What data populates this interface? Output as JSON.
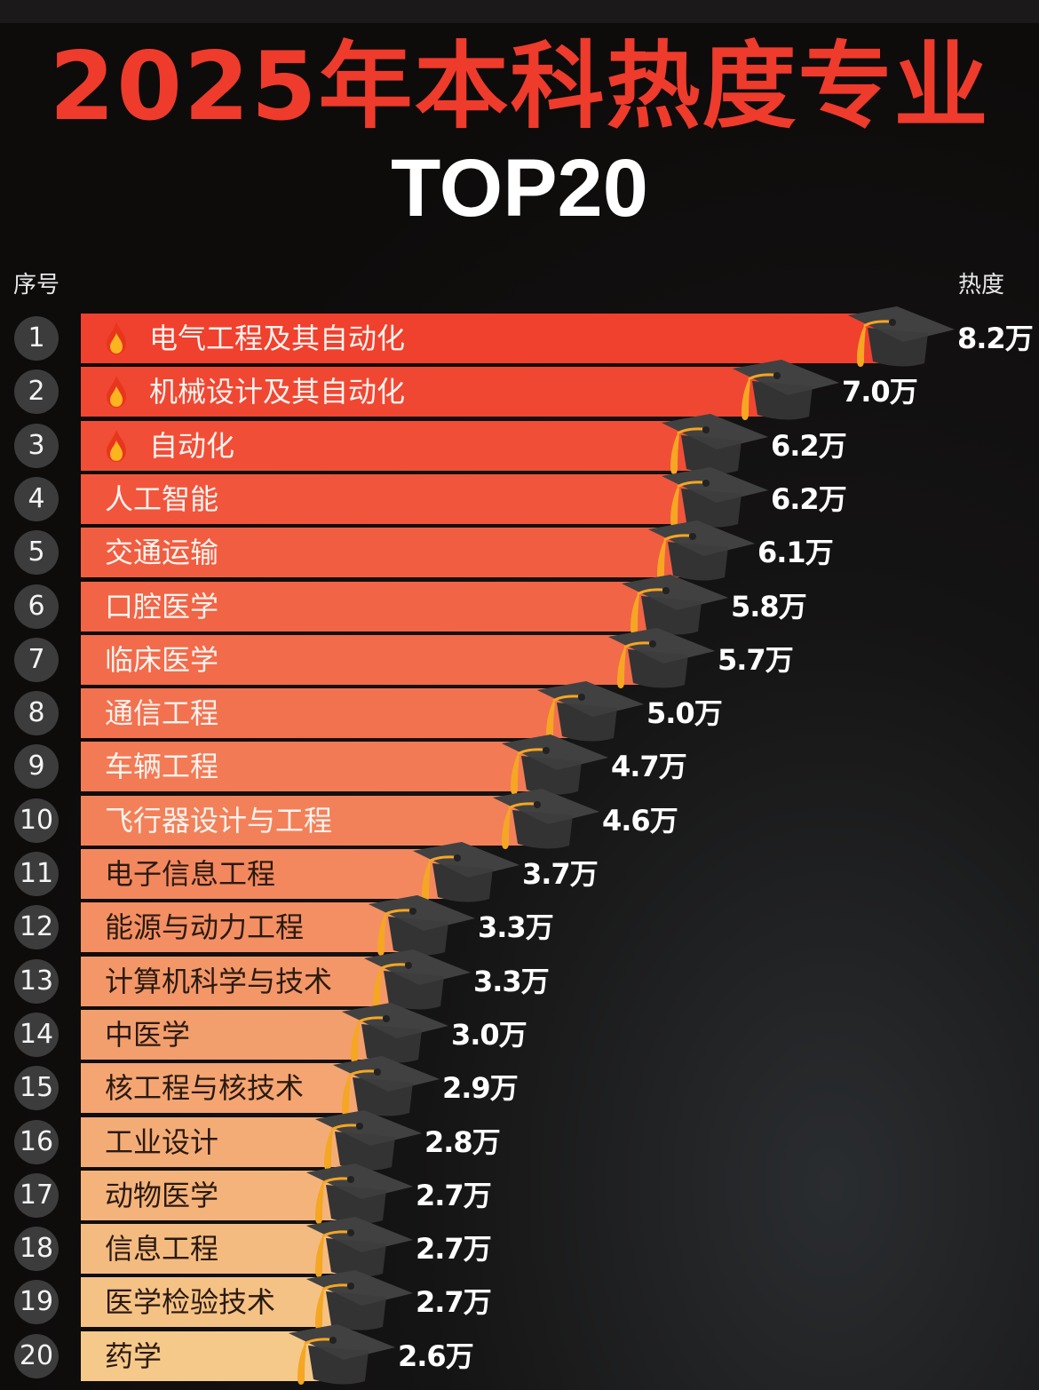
{
  "header": {
    "title": "2025年本科热度专业",
    "subtitle": "TOP20",
    "col_rank": "序号",
    "col_heat": "热度"
  },
  "colors": {
    "title": "#ee3b2c",
    "bar_top": "#f0402e",
    "bar_bottom": "#f5c98a",
    "background": "#0d0a0a",
    "badge": "#3c3c3c",
    "cap": "#3a3a3a",
    "tassel": "#f5a623"
  },
  "rows": [
    {
      "rank": "1",
      "name": "电气工程及其自动化",
      "value": "8.2万",
      "hot": true
    },
    {
      "rank": "2",
      "name": "机械设计及其自动化",
      "value": "7.0万",
      "hot": true
    },
    {
      "rank": "3",
      "name": "自动化",
      "value": "6.2万",
      "hot": true
    },
    {
      "rank": "4",
      "name": "人工智能",
      "value": "6.2万",
      "hot": false
    },
    {
      "rank": "5",
      "name": "交通运输",
      "value": "6.1万",
      "hot": false
    },
    {
      "rank": "6",
      "name": "口腔医学",
      "value": "5.8万",
      "hot": false
    },
    {
      "rank": "7",
      "name": "临床医学",
      "value": "5.7万",
      "hot": false
    },
    {
      "rank": "8",
      "name": "通信工程",
      "value": "5.0万",
      "hot": false
    },
    {
      "rank": "9",
      "name": "车辆工程",
      "value": "4.7万",
      "hot": false
    },
    {
      "rank": "10",
      "name": "飞行器设计与工程",
      "value": "4.6万",
      "hot": false
    },
    {
      "rank": "11",
      "name": "电子信息工程",
      "value": "3.7万",
      "hot": false
    },
    {
      "rank": "12",
      "name": "能源与动力工程",
      "value": "3.3万",
      "hot": false
    },
    {
      "rank": "13",
      "name": "计算机科学与技术",
      "value": "3.3万",
      "hot": false
    },
    {
      "rank": "14",
      "name": "中医学",
      "value": "3.0万",
      "hot": false
    },
    {
      "rank": "15",
      "name": "核工程与核技术",
      "value": "2.9万",
      "hot": false
    },
    {
      "rank": "16",
      "name": "工业设计",
      "value": "2.8万",
      "hot": false
    },
    {
      "rank": "17",
      "name": "动物医学",
      "value": "2.7万",
      "hot": false
    },
    {
      "rank": "18",
      "name": "信息工程",
      "value": "2.7万",
      "hot": false
    },
    {
      "rank": "19",
      "name": "医学检验技术",
      "value": "2.7万",
      "hot": false
    },
    {
      "rank": "20",
      "name": "药学",
      "value": "2.6万",
      "hot": false
    }
  ],
  "chart_data": {
    "type": "bar",
    "orientation": "horizontal",
    "title": "2025年本科热度专业",
    "subtitle": "TOP20",
    "xlabel": "热度",
    "ylabel": "序号",
    "unit": "万",
    "categories": [
      "电气工程及其自动化",
      "机械设计及其自动化",
      "自动化",
      "人工智能",
      "交通运输",
      "口腔医学",
      "临床医学",
      "通信工程",
      "车辆工程",
      "飞行器设计与工程",
      "电子信息工程",
      "能源与动力工程",
      "计算机科学与技术",
      "中医学",
      "核工程与核技术",
      "工业设计",
      "动物医学",
      "信息工程",
      "医学检验技术",
      "药学"
    ],
    "values": [
      8.2,
      7.0,
      6.2,
      6.2,
      6.1,
      5.8,
      5.7,
      5.0,
      4.7,
      4.6,
      3.7,
      3.3,
      3.3,
      3.0,
      2.9,
      2.8,
      2.7,
      2.7,
      2.7,
      2.6
    ],
    "value_labels": [
      "8.2万",
      "7.0万",
      "6.2万",
      "6.2万",
      "6.1万",
      "5.8万",
      "5.7万",
      "5.0万",
      "4.7万",
      "4.6万",
      "3.7万",
      "3.3万",
      "3.3万",
      "3.0万",
      "2.9万",
      "2.8万",
      "2.7万",
      "2.7万",
      "2.7万",
      "2.6万"
    ],
    "grid": false,
    "legend": "none",
    "annotations": [
      "fire icon on ranks 1-3",
      "graduation cap at end of each bar"
    ]
  }
}
